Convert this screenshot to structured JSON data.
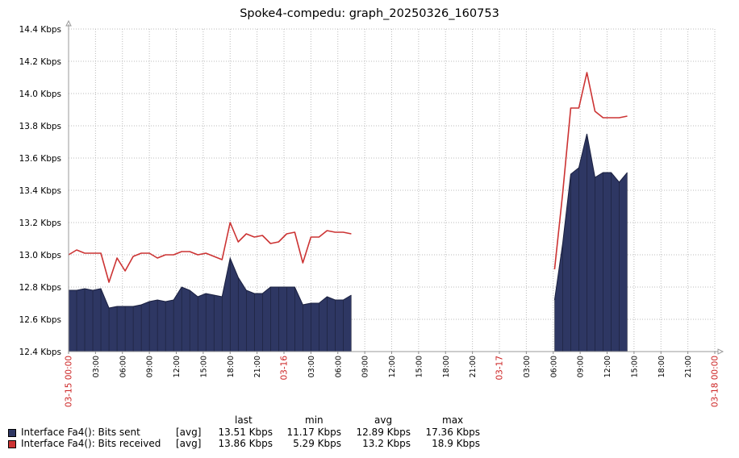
{
  "chart_data": {
    "type": "area",
    "title": "Spoke4-compedu: graph_20250326_160753",
    "ylim": [
      12.4,
      14.4
    ],
    "y_unit": "Kbps",
    "y_ticks": [
      "12.4 Kbps",
      "12.6 Kbps",
      "12.8 Kbps",
      "13.0 Kbps",
      "13.2 Kbps",
      "13.4 Kbps",
      "13.6 Kbps",
      "13.8 Kbps",
      "14.0 Kbps",
      "14.2 Kbps",
      "14.4 Kbps"
    ],
    "x_range": [
      "03-15 00:00",
      "03-18 00:00"
    ],
    "x_ticks": [
      {
        "label": "03-15 00:00",
        "h": 0,
        "major": true
      },
      {
        "label": "03:00",
        "h": 3
      },
      {
        "label": "06:00",
        "h": 6
      },
      {
        "label": "09:00",
        "h": 9
      },
      {
        "label": "12:00",
        "h": 12
      },
      {
        "label": "15:00",
        "h": 15
      },
      {
        "label": "18:00",
        "h": 18
      },
      {
        "label": "21:00",
        "h": 21
      },
      {
        "label": "03-16",
        "h": 24,
        "major": true
      },
      {
        "label": "03:00",
        "h": 27
      },
      {
        "label": "06:00",
        "h": 30
      },
      {
        "label": "09:00",
        "h": 33
      },
      {
        "label": "12:00",
        "h": 36
      },
      {
        "label": "15:00",
        "h": 39
      },
      {
        "label": "18:00",
        "h": 42
      },
      {
        "label": "21:00",
        "h": 45
      },
      {
        "label": "03-17",
        "h": 48,
        "major": true
      },
      {
        "label": "03:00",
        "h": 51
      },
      {
        "label": "06:00",
        "h": 54
      },
      {
        "label": "09:00",
        "h": 57
      },
      {
        "label": "12:00",
        "h": 60
      },
      {
        "label": "15:00",
        "h": 63
      },
      {
        "label": "18:00",
        "h": 66
      },
      {
        "label": "21:00",
        "h": 69
      },
      {
        "label": "03-18 00:00",
        "h": 72,
        "major": true
      }
    ],
    "grid": true,
    "legend_position": "bottom",
    "series": [
      {
        "name": "Interface Fa4(): Bits sent",
        "style": "filled",
        "color": "#2e3763",
        "segments": [
          {
            "start_h": 0,
            "step_h": 0.9,
            "values": [
              12.78,
              12.78,
              12.79,
              12.78,
              12.79,
              12.67,
              12.68,
              12.68,
              12.68,
              12.69,
              12.71,
              12.72,
              12.71,
              12.72,
              12.8,
              12.78,
              12.74,
              12.76,
              12.75,
              12.74,
              12.98,
              12.86,
              12.78,
              12.76,
              12.76,
              12.8,
              12.8,
              12.8,
              12.8,
              12.69,
              12.7,
              12.7,
              12.74,
              12.72,
              12.72,
              12.75
            ]
          },
          {
            "start_h": 54.15,
            "step_h": 0.9,
            "values": [
              12.72,
              13.07,
              13.5,
              13.54,
              13.75,
              13.48,
              13.51,
              13.51,
              13.45,
              13.51
            ]
          }
        ]
      },
      {
        "name": "Interface Fa4(): Bits received",
        "style": "line",
        "color": "#cc3333",
        "segments": [
          {
            "start_h": 0,
            "step_h": 0.9,
            "values": [
              13.0,
              13.03,
              13.01,
              13.01,
              13.01,
              12.83,
              12.98,
              12.9,
              12.99,
              13.01,
              13.01,
              12.98,
              13.0,
              13.0,
              13.02,
              13.02,
              13.0,
              13.01,
              12.99,
              12.97,
              13.2,
              13.08,
              13.13,
              13.11,
              13.12,
              13.07,
              13.08,
              13.13,
              13.14,
              12.95,
              13.11,
              13.11,
              13.15,
              13.14,
              13.14,
              13.13
            ]
          },
          {
            "start_h": 54.15,
            "step_h": 0.9,
            "values": [
              12.91,
              13.38,
              13.91,
              13.91,
              14.13,
              13.89,
              13.85,
              13.85,
              13.85,
              13.86
            ]
          }
        ]
      }
    ]
  },
  "legend": {
    "columns": [
      "last",
      "min",
      "avg",
      "max"
    ],
    "rows": [
      {
        "name": "Interface Fa4(): Bits sent",
        "func": "[avg]",
        "color": "#2e3763",
        "last": "13.51 Kbps",
        "min": "11.17 Kbps",
        "avg": "12.89 Kbps",
        "max": "17.36 Kbps"
      },
      {
        "name": "Interface Fa4(): Bits received",
        "func": "[avg]",
        "color": "#cc3333",
        "last": "13.86 Kbps",
        "min": "5.29 Kbps",
        "avg": "13.2 Kbps",
        "max": "18.9 Kbps"
      }
    ]
  }
}
